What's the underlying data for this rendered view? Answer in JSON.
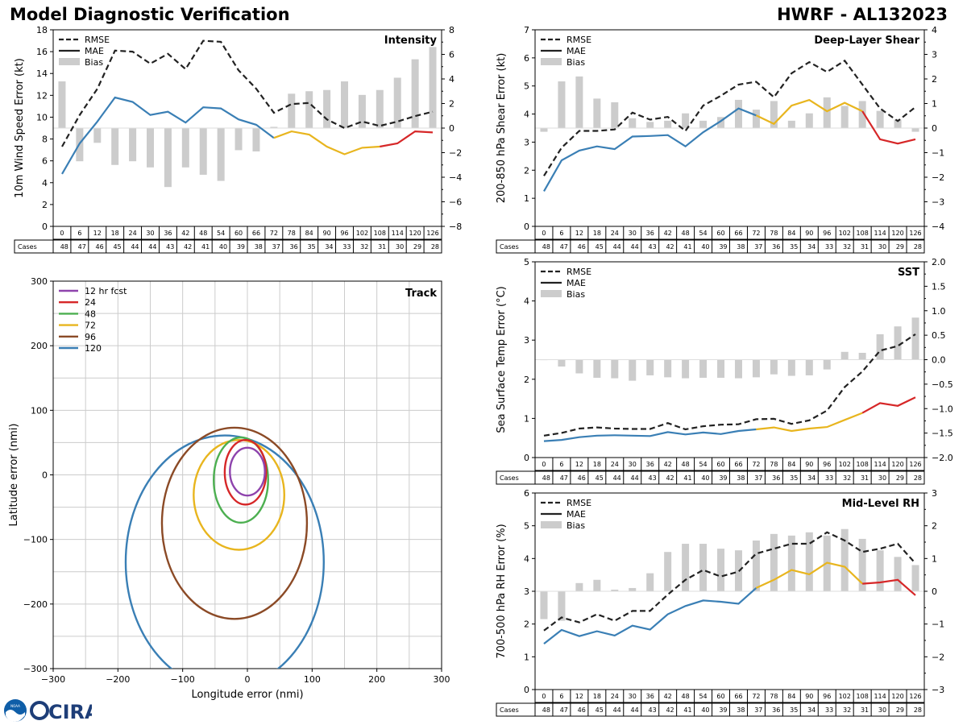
{
  "header": {
    "title_left": "Model Diagnostic Verification",
    "title_right": "HWRF - AL132023"
  },
  "logo": {
    "noaa_text": "NOAA",
    "cira_text": "CIRA"
  },
  "colors": {
    "rmse": "#222222",
    "mae_early": "#3a7fb5",
    "mae_mid": "#e8b51e",
    "mae_late": "#d62728",
    "bias": "#cccccc",
    "grid": "#cccccc",
    "track_12": "#8e44ad",
    "track_24": "#d62728",
    "track_48": "#4caf50",
    "track_72": "#e8b51e",
    "track_96": "#8b4a26",
    "track_120": "#3a7fb5"
  },
  "legend_labels": {
    "rmse": "RMSE",
    "mae": "MAE",
    "bias": "Bias"
  },
  "table_label": "Cases",
  "chart_data": [
    {
      "id": "intensity",
      "type": "line",
      "title": "Intensity",
      "ylabel": "10m Wind Speed Error (kt)",
      "ylim": [
        0,
        18
      ],
      "yticks": [
        0,
        2,
        4,
        6,
        8,
        10,
        12,
        14,
        16,
        18
      ],
      "y2lim": [
        -8,
        8
      ],
      "y2ticks": [
        -8,
        -6,
        -4,
        -2,
        0,
        2,
        4,
        6,
        8
      ],
      "x": [
        0,
        6,
        12,
        18,
        24,
        30,
        36,
        42,
        48,
        54,
        60,
        66,
        72,
        78,
        84,
        90,
        96,
        102,
        108,
        114,
        120,
        126
      ],
      "rmse": [
        7.3,
        10.2,
        12.6,
        16.1,
        16.0,
        14.9,
        15.8,
        14.4,
        17.0,
        16.9,
        14.3,
        12.6,
        10.4,
        11.2,
        11.3,
        9.8,
        9.0,
        9.6,
        9.2,
        9.6,
        10.1,
        10.5
      ],
      "mae": [
        4.8,
        7.6,
        9.6,
        11.8,
        11.4,
        10.2,
        10.5,
        9.5,
        10.9,
        10.8,
        9.8,
        9.3,
        8.1,
        8.7,
        8.4,
        7.3,
        6.6,
        7.2,
        7.3,
        7.6,
        8.7,
        8.6
      ],
      "bias": [
        3.8,
        -2.7,
        -1.2,
        -3.0,
        -2.7,
        -3.2,
        -4.8,
        -3.2,
        -3.8,
        -4.3,
        -1.8,
        -1.9,
        0.1,
        2.8,
        3.0,
        3.1,
        3.8,
        2.7,
        3.1,
        4.1,
        5.6,
        6.6
      ],
      "cases": [
        48,
        47,
        46,
        45,
        44,
        44,
        43,
        42,
        41,
        40,
        39,
        38,
        37,
        36,
        35,
        34,
        33,
        32,
        31,
        30,
        29,
        28
      ]
    },
    {
      "id": "shear",
      "type": "line",
      "title": "Deep-Layer Shear",
      "ylabel": "200-850 hPa Shear Error (kt)",
      "ylim": [
        0,
        7
      ],
      "yticks": [
        0,
        1,
        2,
        3,
        4,
        5,
        6,
        7
      ],
      "y2lim": [
        -4,
        4
      ],
      "y2ticks": [
        -4,
        -3,
        -2,
        -1,
        0,
        1,
        2,
        3,
        4
      ],
      "x": [
        0,
        6,
        12,
        18,
        24,
        30,
        36,
        42,
        48,
        54,
        60,
        66,
        72,
        78,
        84,
        90,
        96,
        102,
        108,
        114,
        120,
        126
      ],
      "rmse": [
        1.8,
        2.8,
        3.4,
        3.4,
        3.45,
        4.05,
        3.8,
        3.9,
        3.4,
        4.3,
        4.65,
        5.05,
        5.15,
        4.6,
        5.45,
        5.85,
        5.5,
        5.9,
        5.05,
        4.2,
        3.75,
        4.25
      ],
      "mae": [
        1.25,
        2.35,
        2.7,
        2.85,
        2.75,
        3.2,
        3.22,
        3.25,
        2.85,
        3.35,
        3.75,
        4.2,
        3.95,
        3.65,
        4.3,
        4.5,
        4.1,
        4.4,
        4.1,
        3.1,
        2.95,
        3.1
      ],
      "bias": [
        -0.15,
        1.9,
        2.1,
        1.2,
        1.05,
        0.4,
        0.25,
        0.3,
        0.6,
        0.3,
        0.45,
        1.15,
        0.75,
        1.1,
        0.3,
        0.6,
        1.25,
        0.9,
        1.1,
        0.7,
        0.35,
        -0.15
      ],
      "cases": [
        48,
        47,
        46,
        45,
        44,
        44,
        43,
        42,
        41,
        40,
        39,
        38,
        37,
        36,
        35,
        34,
        33,
        32,
        31,
        30,
        29,
        28
      ]
    },
    {
      "id": "sst",
      "type": "line",
      "title": "SST",
      "ylabel": "Sea Surface Temp Error (°C)",
      "ylim": [
        0,
        5
      ],
      "yticks": [
        0,
        1,
        2,
        3,
        4,
        5
      ],
      "y2lim": [
        -2.0,
        2.0
      ],
      "y2ticks": [
        -2.0,
        -1.5,
        -1.0,
        -0.5,
        0.0,
        0.5,
        1.0,
        1.5,
        2.0
      ],
      "x": [
        0,
        6,
        12,
        18,
        24,
        30,
        36,
        42,
        48,
        54,
        60,
        66,
        72,
        78,
        84,
        90,
        96,
        102,
        108,
        114,
        120,
        126
      ],
      "rmse": [
        0.56,
        0.63,
        0.74,
        0.77,
        0.74,
        0.73,
        0.73,
        0.88,
        0.72,
        0.8,
        0.84,
        0.85,
        0.98,
        0.99,
        0.86,
        0.95,
        1.2,
        1.8,
        2.2,
        2.73,
        2.85,
        3.15
      ],
      "mae": [
        0.42,
        0.45,
        0.52,
        0.56,
        0.57,
        0.56,
        0.55,
        0.65,
        0.59,
        0.64,
        0.6,
        0.68,
        0.72,
        0.77,
        0.68,
        0.74,
        0.78,
        0.96,
        1.14,
        1.39,
        1.32,
        1.54
      ],
      "bias": [
        0.0,
        -0.14,
        -0.28,
        -0.37,
        -0.38,
        -0.43,
        -0.32,
        -0.36,
        -0.38,
        -0.37,
        -0.37,
        -0.38,
        -0.36,
        -0.3,
        -0.33,
        -0.32,
        -0.2,
        0.16,
        0.14,
        0.52,
        0.68,
        0.86
      ],
      "cases": [
        48,
        47,
        46,
        45,
        44,
        44,
        43,
        42,
        41,
        40,
        39,
        38,
        37,
        36,
        35,
        34,
        33,
        32,
        31,
        30,
        29,
        28
      ]
    },
    {
      "id": "rh",
      "type": "line",
      "title": "Mid-Level RH",
      "ylabel": "700-500 hPa RH Error (%)",
      "ylim": [
        0,
        6
      ],
      "yticks": [
        0,
        1,
        2,
        3,
        4,
        5,
        6
      ],
      "y2lim": [
        -3,
        3
      ],
      "y2ticks": [
        -3,
        -2,
        -1,
        0,
        1,
        2,
        3
      ],
      "x": [
        0,
        6,
        12,
        18,
        24,
        30,
        36,
        42,
        48,
        54,
        60,
        66,
        72,
        78,
        84,
        90,
        96,
        102,
        108,
        114,
        120,
        126
      ],
      "rmse": [
        1.8,
        2.2,
        2.05,
        2.3,
        2.1,
        2.4,
        2.4,
        2.9,
        3.35,
        3.65,
        3.45,
        3.6,
        4.15,
        4.3,
        4.45,
        4.45,
        4.8,
        4.55,
        4.2,
        4.3,
        4.45,
        3.85
      ],
      "mae": [
        1.4,
        1.82,
        1.63,
        1.78,
        1.65,
        1.95,
        1.83,
        2.3,
        2.55,
        2.72,
        2.68,
        2.62,
        3.1,
        3.35,
        3.65,
        3.52,
        3.87,
        3.75,
        3.23,
        3.27,
        3.35,
        2.88
      ],
      "bias": [
        -0.85,
        -0.9,
        0.25,
        0.35,
        0.05,
        0.1,
        0.55,
        1.2,
        1.45,
        1.45,
        1.3,
        1.25,
        1.55,
        1.75,
        1.7,
        1.8,
        1.7,
        1.9,
        1.6,
        1.25,
        1.05,
        0.8
      ],
      "cases": [
        48,
        47,
        46,
        45,
        44,
        44,
        43,
        42,
        41,
        40,
        39,
        38,
        37,
        36,
        35,
        34,
        33,
        32,
        31,
        30,
        29,
        28
      ]
    },
    {
      "id": "track",
      "type": "scatter",
      "title": "Track",
      "xlabel": "Longitude error (nmi)",
      "ylabel": "Latitude error (nmi)",
      "xlim": [
        -300,
        300
      ],
      "ylim": [
        -300,
        300
      ],
      "xticks": [
        -300,
        -200,
        -100,
        0,
        100,
        200,
        300
      ],
      "yticks": [
        -300,
        -200,
        -100,
        0,
        100,
        200,
        300
      ],
      "ellipses": [
        {
          "label": "12 hr fcst",
          "color_key": "track_12",
          "cx": 0,
          "cy": 5,
          "rx": 27,
          "ry": 37
        },
        {
          "label": "24",
          "color_key": "track_24",
          "cx": -3,
          "cy": 4,
          "rx": 32,
          "ry": 50
        },
        {
          "label": "48",
          "color_key": "track_48",
          "cx": -10,
          "cy": -8,
          "rx": 42,
          "ry": 66
        },
        {
          "label": "72",
          "color_key": "track_72",
          "cx": -13,
          "cy": -31,
          "rx": 70,
          "ry": 85
        },
        {
          "label": "96",
          "color_key": "track_96",
          "cx": -20,
          "cy": -75,
          "rx": 112,
          "ry": 148
        },
        {
          "label": "120",
          "color_key": "track_120",
          "cx": -35,
          "cy": -135,
          "rx": 153,
          "ry": 196
        }
      ]
    }
  ]
}
